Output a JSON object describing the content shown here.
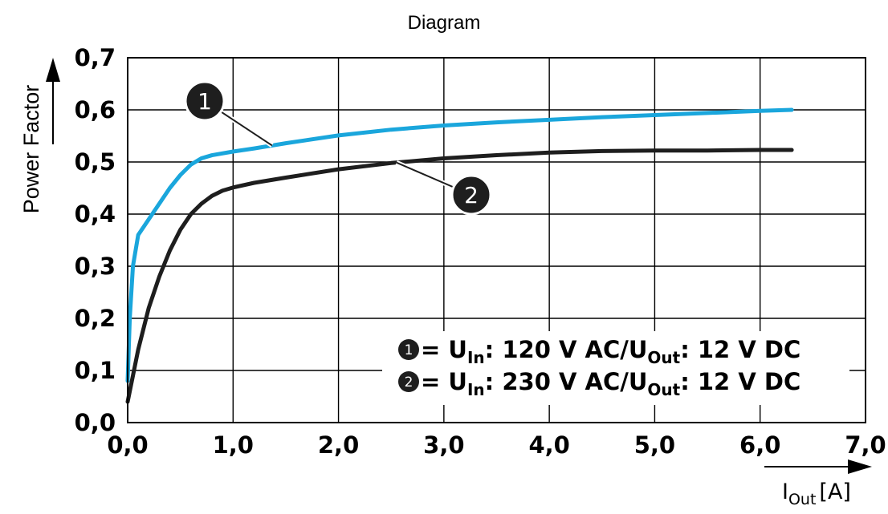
{
  "chart_data": {
    "type": "line",
    "title": "Diagram",
    "ylabel": "Power Factor",
    "xlabel": {
      "symbol": "I",
      "subscript": "Out",
      "unit": "[A]"
    },
    "xlim": [
      0,
      7
    ],
    "ylim": [
      0,
      0.7
    ],
    "x_ticks": [
      "0,0",
      "1,0",
      "2,0",
      "3,0",
      "4,0",
      "5,0",
      "6,0",
      "7,0"
    ],
    "y_ticks": [
      "0,0",
      "0,1",
      "0,2",
      "0,3",
      "0,4",
      "0,5",
      "0,6",
      "0,7"
    ],
    "grid": true,
    "series": [
      {
        "marker": "1",
        "color": "#1aa6dc",
        "x": [
          0.0,
          0.02,
          0.05,
          0.1,
          0.2,
          0.3,
          0.4,
          0.5,
          0.6,
          0.7,
          0.8,
          1.0,
          1.2,
          1.5,
          2.0,
          2.5,
          3.0,
          3.5,
          4.0,
          4.5,
          5.0,
          5.5,
          6.0,
          6.3
        ],
        "y": [
          0.08,
          0.2,
          0.3,
          0.36,
          0.39,
          0.42,
          0.45,
          0.475,
          0.495,
          0.507,
          0.513,
          0.52,
          0.526,
          0.536,
          0.551,
          0.562,
          0.57,
          0.576,
          0.581,
          0.586,
          0.59,
          0.594,
          0.598,
          0.6
        ]
      },
      {
        "marker": "2",
        "color": "#1e1e1e",
        "x": [
          0.0,
          0.05,
          0.1,
          0.2,
          0.3,
          0.4,
          0.5,
          0.6,
          0.7,
          0.8,
          0.9,
          1.0,
          1.2,
          1.5,
          2.0,
          2.5,
          3.0,
          3.5,
          4.0,
          4.5,
          5.0,
          5.5,
          6.0,
          6.3
        ],
        "y": [
          0.04,
          0.09,
          0.14,
          0.22,
          0.28,
          0.33,
          0.37,
          0.4,
          0.42,
          0.435,
          0.445,
          0.451,
          0.46,
          0.47,
          0.486,
          0.498,
          0.507,
          0.513,
          0.518,
          0.521,
          0.522,
          0.522,
          0.523,
          0.523
        ]
      }
    ],
    "legend": {
      "placement": "bottom-right",
      "entries": [
        {
          "marker": "1",
          "text_a": " = U",
          "sub_a": "In",
          "text_b": ": 120 V AC/U",
          "sub_b": "Out",
          "text_c": ": 12 V DC"
        },
        {
          "marker": "2",
          "text_a": " = U",
          "sub_a": "In",
          "text_b": ": 230 V AC/U",
          "sub_b": "Out",
          "text_c": ": 12 V DC"
        }
      ]
    }
  }
}
